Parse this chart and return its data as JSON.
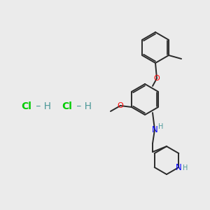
{
  "bg_color": "#ebebeb",
  "bond_color": "#2a2a2a",
  "o_color": "#ff0000",
  "n_color": "#0000ff",
  "nh_color": "#4d9999",
  "cl_color": "#00cc00",
  "h_color": "#4d9999",
  "lw": 1.4,
  "lw_double": 1.2,
  "hcl1": [
    0.115,
    0.475
  ],
  "hcl2": [
    0.355,
    0.475
  ],
  "hcl_fontsize": 11
}
